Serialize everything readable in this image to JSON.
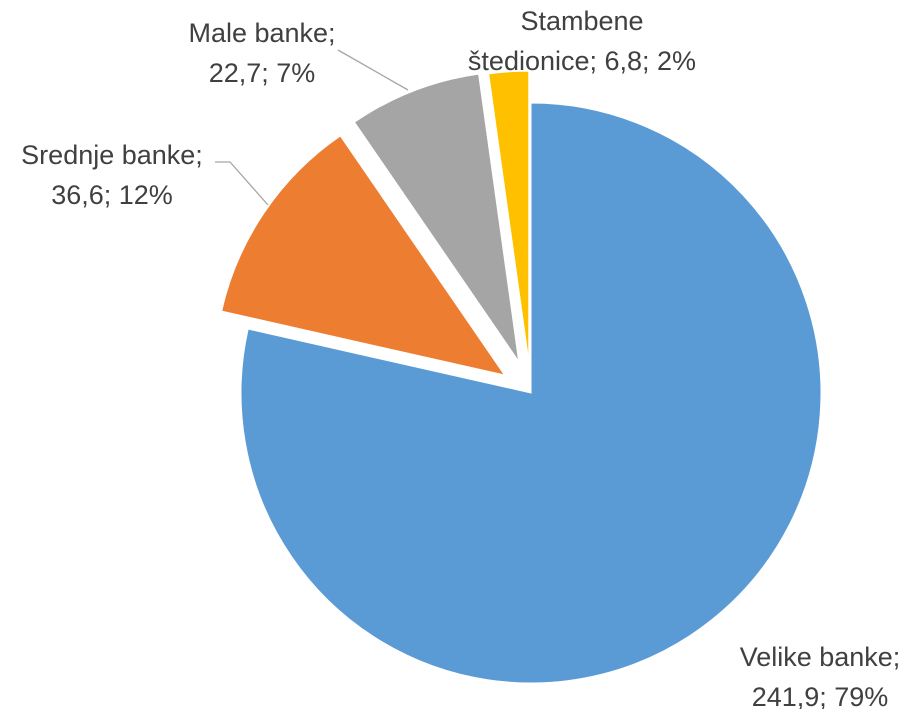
{
  "chart_data": {
    "type": "pie",
    "title": "",
    "legend": "none",
    "exploded": true,
    "start_angle_deg": 0,
    "direction": "clockwise",
    "slices": [
      {
        "category": "Velike banke",
        "value": 241.9,
        "percent": 79,
        "color": "#5b9bd5",
        "label_lines": [
          "Velike banke;",
          "241,9; 79%"
        ]
      },
      {
        "category": "Srednje banke",
        "value": 36.6,
        "percent": 12,
        "color": "#ed7d31",
        "label_lines": [
          "Srednje banke;",
          "36,6; 12%"
        ]
      },
      {
        "category": "Male banke",
        "value": 22.7,
        "percent": 7,
        "color": "#a5a5a5",
        "label_lines": [
          "Male banke;",
          "22,7; 7%"
        ]
      },
      {
        "category": "Stambene štedionice",
        "value": 6.8,
        "percent": 2,
        "color": "#ffc000",
        "label_lines": [
          "Stambene",
          "štedionice; 6,8; 2%"
        ]
      }
    ]
  }
}
